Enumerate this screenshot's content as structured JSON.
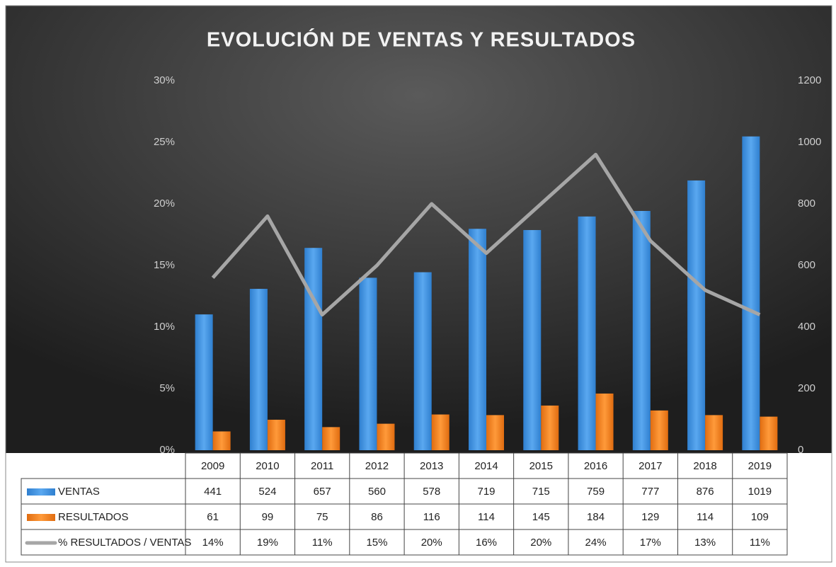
{
  "chart_data": {
    "type": "bar",
    "title": "EVOLUCIÓN  DE VENTAS  Y RESULTADOS",
    "categories": [
      "2009",
      "2010",
      "2011",
      "2012",
      "2013",
      "2014",
      "2015",
      "2016",
      "2017",
      "2018",
      "2019"
    ],
    "series": [
      {
        "name": "VENTAS",
        "color": "#3b8ede",
        "axis": "y2",
        "type": "bar",
        "values": [
          441,
          524,
          657,
          560,
          578,
          719,
          715,
          759,
          777,
          876,
          1019
        ]
      },
      {
        "name": "RESULTADOS",
        "color": "#f07d1a",
        "axis": "y2",
        "type": "bar",
        "values": [
          61,
          99,
          75,
          86,
          116,
          114,
          145,
          184,
          129,
          114,
          109
        ]
      },
      {
        "name": "% RESULTADOS / VENTAS",
        "color": "#a6a6a6",
        "type": "line",
        "values": [
          14,
          19,
          11,
          15,
          20,
          16,
          20,
          24,
          17,
          13,
          11
        ],
        "value_labels": [
          "14%",
          "19%",
          "11%",
          "15%",
          "20%",
          "16%",
          "20%",
          "24%",
          "17%",
          "13%",
          "11%"
        ]
      }
    ],
    "ylim": [
      0,
      30
    ],
    "yticks": [
      {
        "value": 0,
        "label": "0%"
      },
      {
        "value": 5,
        "label": "5%"
      },
      {
        "value": 10,
        "label": "10%"
      },
      {
        "value": 15,
        "label": "15%"
      },
      {
        "value": 20,
        "label": "20%"
      },
      {
        "value": 25,
        "label": "25%"
      },
      {
        "value": 30,
        "label": "30%"
      }
    ],
    "y2lim": [
      0,
      1200
    ],
    "y2ticks": [
      0,
      200,
      400,
      600,
      800,
      1000,
      1200
    ]
  }
}
